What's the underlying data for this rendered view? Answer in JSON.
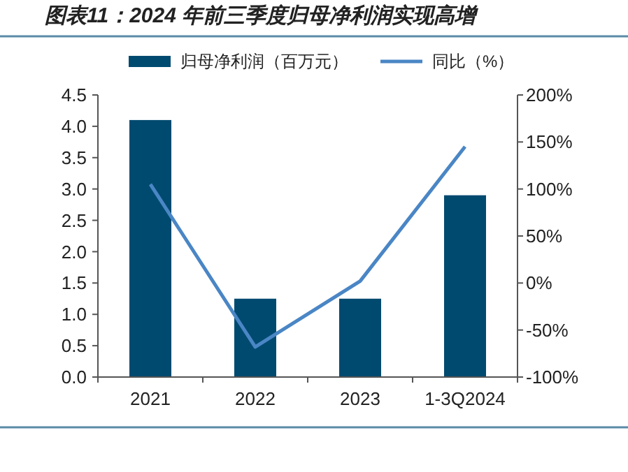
{
  "chart_data": {
    "type": "bar",
    "title": "图表11：2024 年前三季度归母净利润实现高增",
    "categories": [
      "2021",
      "2022",
      "2023",
      "1-3Q2024"
    ],
    "series": [
      {
        "name": "归母净利润（百万元）",
        "color": "#004a70",
        "values": [
          4.1,
          1.25,
          1.25,
          2.9
        ]
      },
      {
        "name": "同比（%）",
        "type": "line",
        "axis": "y2",
        "color": "#4a86c5",
        "values": [
          105,
          -68,
          2,
          145
        ]
      }
    ],
    "ylim": [
      0,
      4.5
    ],
    "yticks": [
      {
        "value": 0,
        "label": "0.0"
      },
      {
        "value": 0.5,
        "label": "0.5"
      },
      {
        "value": 1,
        "label": "1.0"
      },
      {
        "value": 1.5,
        "label": "1.5"
      },
      {
        "value": 2,
        "label": "2.0"
      },
      {
        "value": 2.5,
        "label": "2.5"
      },
      {
        "value": 3,
        "label": "3.0"
      },
      {
        "value": 3.5,
        "label": "3.5"
      },
      {
        "value": 4,
        "label": "4.0"
      },
      {
        "value": 4.5,
        "label": "4.5"
      }
    ],
    "y2lim": [
      -100,
      200
    ],
    "y2ticks": [
      {
        "value": -100,
        "label": "-100%"
      },
      {
        "value": -50,
        "label": "-50%"
      },
      {
        "value": 0,
        "label": "0%"
      },
      {
        "value": 50,
        "label": "50%"
      },
      {
        "value": 100,
        "label": "100%"
      },
      {
        "value": 150,
        "label": "150%"
      },
      {
        "value": 200,
        "label": "200%"
      }
    ],
    "legend": "top",
    "grid": false,
    "marker": "none",
    "line_style": "solid"
  }
}
